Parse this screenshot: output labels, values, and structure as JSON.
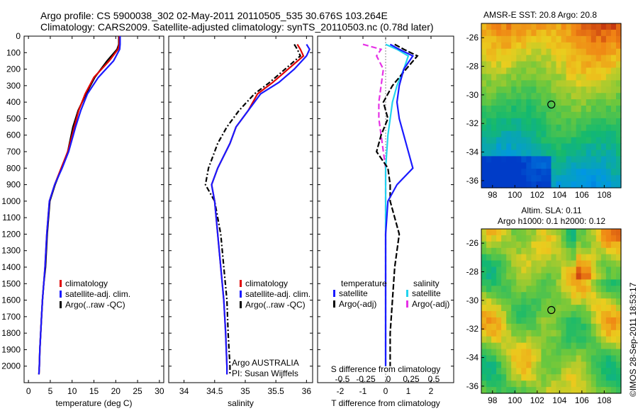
{
  "header": {
    "line1": "Argo profile: CS 5900038_302 02-May-2011 20110505_535 30.676S 103.264E",
    "line2": "Climatology: CARS2009. Satellite-adjusted climatology: synTS_20110503.nc (0.78d later)"
  },
  "depth_ticks": [
    "0",
    "100",
    "200",
    "300",
    "400",
    "500",
    "600",
    "700",
    "800",
    "900",
    "1000",
    "1100",
    "1200",
    "1300",
    "1400",
    "1500",
    "1600",
    "1700",
    "1800",
    "1900",
    "2000"
  ],
  "colors": {
    "climatology": "#e00000",
    "satellite": "#1a1aff",
    "argo": "#000000",
    "sat_sal": "#22d3ee",
    "argo_sal": "#e632e6"
  },
  "chart_data": [
    {
      "type": "line",
      "panel": "temperature",
      "xlabel": "temperature (deg C)",
      "ylabel": "",
      "xlim": [
        -1,
        31
      ],
      "ylim": [
        2100,
        0
      ],
      "xticks": [
        "0",
        "5",
        "10",
        "15",
        "20",
        "25",
        "30"
      ],
      "legend": [
        "climatology",
        "satellite-adj. clim.",
        "Argo(..raw -QC)"
      ],
      "series": [
        {
          "name": "climatology",
          "x": [
            20.8,
            20.8,
            20.5,
            18.5,
            15.0,
            13.0,
            11.5,
            10.5,
            9.0,
            7.5,
            6.0,
            4.8,
            4.2,
            3.8,
            3.5,
            3.2,
            3.0,
            2.8,
            2.6,
            2.5,
            2.4
          ],
          "y": [
            0,
            50,
            80,
            150,
            250,
            350,
            450,
            550,
            700,
            800,
            900,
            1000,
            1200,
            1400,
            1500,
            1600,
            1700,
            1800,
            1900,
            2000,
            2050
          ]
        },
        {
          "name": "satellite-adj. clim.",
          "x": [
            21.0,
            21.0,
            20.9,
            19.5,
            16.0,
            13.5,
            12.0,
            10.8,
            9.2,
            7.7,
            6.0,
            4.8,
            4.2,
            3.8,
            3.5,
            3.2,
            3.0,
            2.8,
            2.6,
            2.5,
            2.4
          ],
          "y": [
            0,
            50,
            80,
            150,
            250,
            350,
            450,
            550,
            700,
            800,
            900,
            1000,
            1200,
            1400,
            1500,
            1600,
            1700,
            1800,
            1900,
            2000,
            2050
          ]
        },
        {
          "name": "Argo(..raw -QC)",
          "x": [
            20.7,
            20.7,
            20.3,
            18.0,
            15.2,
            13.2,
            11.4,
            10.2,
            9.0,
            7.6,
            6.1,
            4.9,
            4.3,
            3.9,
            3.5,
            3.2,
            3.0,
            2.8,
            2.6,
            2.5,
            2.4
          ],
          "y": [
            0,
            50,
            80,
            150,
            250,
            350,
            450,
            550,
            700,
            800,
            900,
            1000,
            1200,
            1400,
            1500,
            1600,
            1700,
            1800,
            1900,
            2000,
            2050
          ]
        }
      ]
    },
    {
      "type": "line",
      "panel": "salinity",
      "xlabel": "salinity",
      "ylabel": "",
      "xlim": [
        33.75,
        36.1
      ],
      "ylim": [
        2100,
        0
      ],
      "xticks": [
        "34",
        "34.5",
        "35",
        "35.5",
        "36"
      ],
      "legend": [
        "climatology",
        "satellite-adj. clim.",
        "Argo(..raw -QC)"
      ],
      "annotation": [
        "Argo AUSTRALIA",
        "PI: Susan Wijffels"
      ],
      "series": [
        {
          "name": "climatology",
          "x": [
            35.85,
            35.9,
            35.95,
            35.7,
            35.45,
            35.2,
            35.05,
            34.85,
            34.75,
            34.55,
            34.45,
            34.5,
            34.55,
            34.6,
            34.65,
            34.68,
            34.7,
            34.7
          ],
          "y": [
            50,
            80,
            120,
            200,
            280,
            350,
            450,
            550,
            650,
            800,
            900,
            1000,
            1200,
            1400,
            1600,
            1800,
            2000,
            2050
          ]
        },
        {
          "name": "satellite-adj. clim.",
          "x": [
            36.0,
            36.05,
            36.0,
            35.8,
            35.55,
            35.25,
            35.05,
            34.85,
            34.75,
            34.55,
            34.45,
            34.5,
            34.55,
            34.6,
            34.65,
            34.68,
            34.7,
            34.7
          ],
          "y": [
            50,
            80,
            120,
            200,
            280,
            350,
            450,
            550,
            650,
            800,
            900,
            1000,
            1200,
            1400,
            1600,
            1800,
            2000,
            2050
          ]
        },
        {
          "name": "Argo(..raw -QC)",
          "x": [
            35.8,
            35.85,
            35.9,
            35.65,
            35.4,
            35.15,
            34.9,
            34.7,
            34.55,
            34.4,
            34.35,
            34.5,
            34.6,
            34.65,
            34.7,
            34.72,
            34.75,
            34.75
          ],
          "y": [
            50,
            80,
            120,
            200,
            280,
            350,
            450,
            550,
            650,
            800,
            900,
            1000,
            1200,
            1400,
            1600,
            1800,
            2000,
            2050
          ]
        }
      ]
    },
    {
      "type": "line",
      "panel": "difference",
      "xlabel": "T difference from climatology",
      "xlabel2": "S difference from climatology",
      "xlim": [
        -3,
        3
      ],
      "ylim": [
        2100,
        0
      ],
      "xticks": [
        "-2",
        "-1",
        "0",
        "1",
        "2"
      ],
      "xticks_s": [
        "-0.5",
        "-0.25",
        "0",
        "0.25",
        "0.5"
      ],
      "legend_titles": [
        "temperature",
        "salinity"
      ],
      "legend": [
        "satellite",
        "Argo(-adj)",
        "satellite",
        "Argo(-adj)"
      ],
      "series": [
        {
          "name": "satellite",
          "x": [
            0.2,
            0.6,
            1.2,
            0.8,
            0.6,
            0.5,
            0.6,
            0.8,
            1.0,
            1.2,
            0.5,
            0.1,
            0.0,
            0.0,
            0.0,
            0.0,
            0.0,
            0.0
          ],
          "y": [
            50,
            80,
            120,
            200,
            300,
            400,
            500,
            600,
            700,
            800,
            900,
            1000,
            1200,
            1400,
            1600,
            1800,
            1900,
            2000
          ]
        },
        {
          "name": "Argo(-adj)",
          "x": [
            0.4,
            0.8,
            1.4,
            0.9,
            0.3,
            -0.1,
            0.1,
            -0.2,
            -0.4,
            0.1,
            0.2,
            0.2,
            0.6,
            0.4,
            0.3,
            0.2,
            0.2,
            0.2
          ],
          "y": [
            50,
            80,
            120,
            200,
            300,
            400,
            500,
            600,
            700,
            800,
            900,
            1000,
            1200,
            1400,
            1600,
            1800,
            1900,
            2000
          ]
        },
        {
          "name": "satellite",
          "x": [
            0.0,
            0.5,
            1.0,
            0.8,
            0.5,
            0.3,
            0.2,
            0.1,
            0.0,
            0.0,
            0.0,
            0.0,
            0.0,
            0.0,
            0.0,
            0.0
          ],
          "y": [
            50,
            80,
            120,
            200,
            300,
            400,
            500,
            600,
            800,
            1000,
            1200,
            1400,
            1600,
            1800,
            1900,
            2000
          ]
        },
        {
          "name": "Argo(-adj)",
          "x": [
            -1.0,
            -0.2,
            -0.4,
            -0.1,
            -0.2,
            -0.3,
            -0.3,
            -0.2,
            0.0,
            0.0,
            0.0,
            0.0,
            0.0,
            0.0,
            0.0,
            0.0
          ],
          "y": [
            50,
            80,
            120,
            200,
            300,
            400,
            500,
            600,
            800,
            1000,
            1200,
            1400,
            1600,
            1800,
            1900,
            2000
          ]
        }
      ]
    },
    {
      "type": "heatmap",
      "panel": "sst-map",
      "title": "AMSR-E SST: 20.8  Argo: 20.8",
      "xlim": [
        97,
        109.5
      ],
      "ylim": [
        -36.5,
        -25
      ],
      "xticks": [
        "98",
        "100",
        "102",
        "104",
        "106",
        "108"
      ],
      "yticks": [
        "-26",
        "-28",
        "-30",
        "-32",
        "-34",
        "-36"
      ],
      "marker": {
        "lon": 103.264,
        "lat": -30.676
      }
    },
    {
      "type": "heatmap",
      "panel": "sla-map",
      "title": "Altim. SLA: 0.11",
      "subtitle": "Argo h1000: 0.1  h2000: 0.12",
      "xlim": [
        97,
        109.5
      ],
      "ylim": [
        -36.5,
        -25
      ],
      "xticks": [
        "98",
        "100",
        "102",
        "104",
        "106",
        "108"
      ],
      "yticks": [
        "-26",
        "-28",
        "-30",
        "-32",
        "-34",
        "-36"
      ],
      "marker": {
        "lon": 103.264,
        "lat": -30.676
      }
    }
  ],
  "footer": {
    "credit": "©IMOS 28-Sep-2011 18:53:17"
  }
}
